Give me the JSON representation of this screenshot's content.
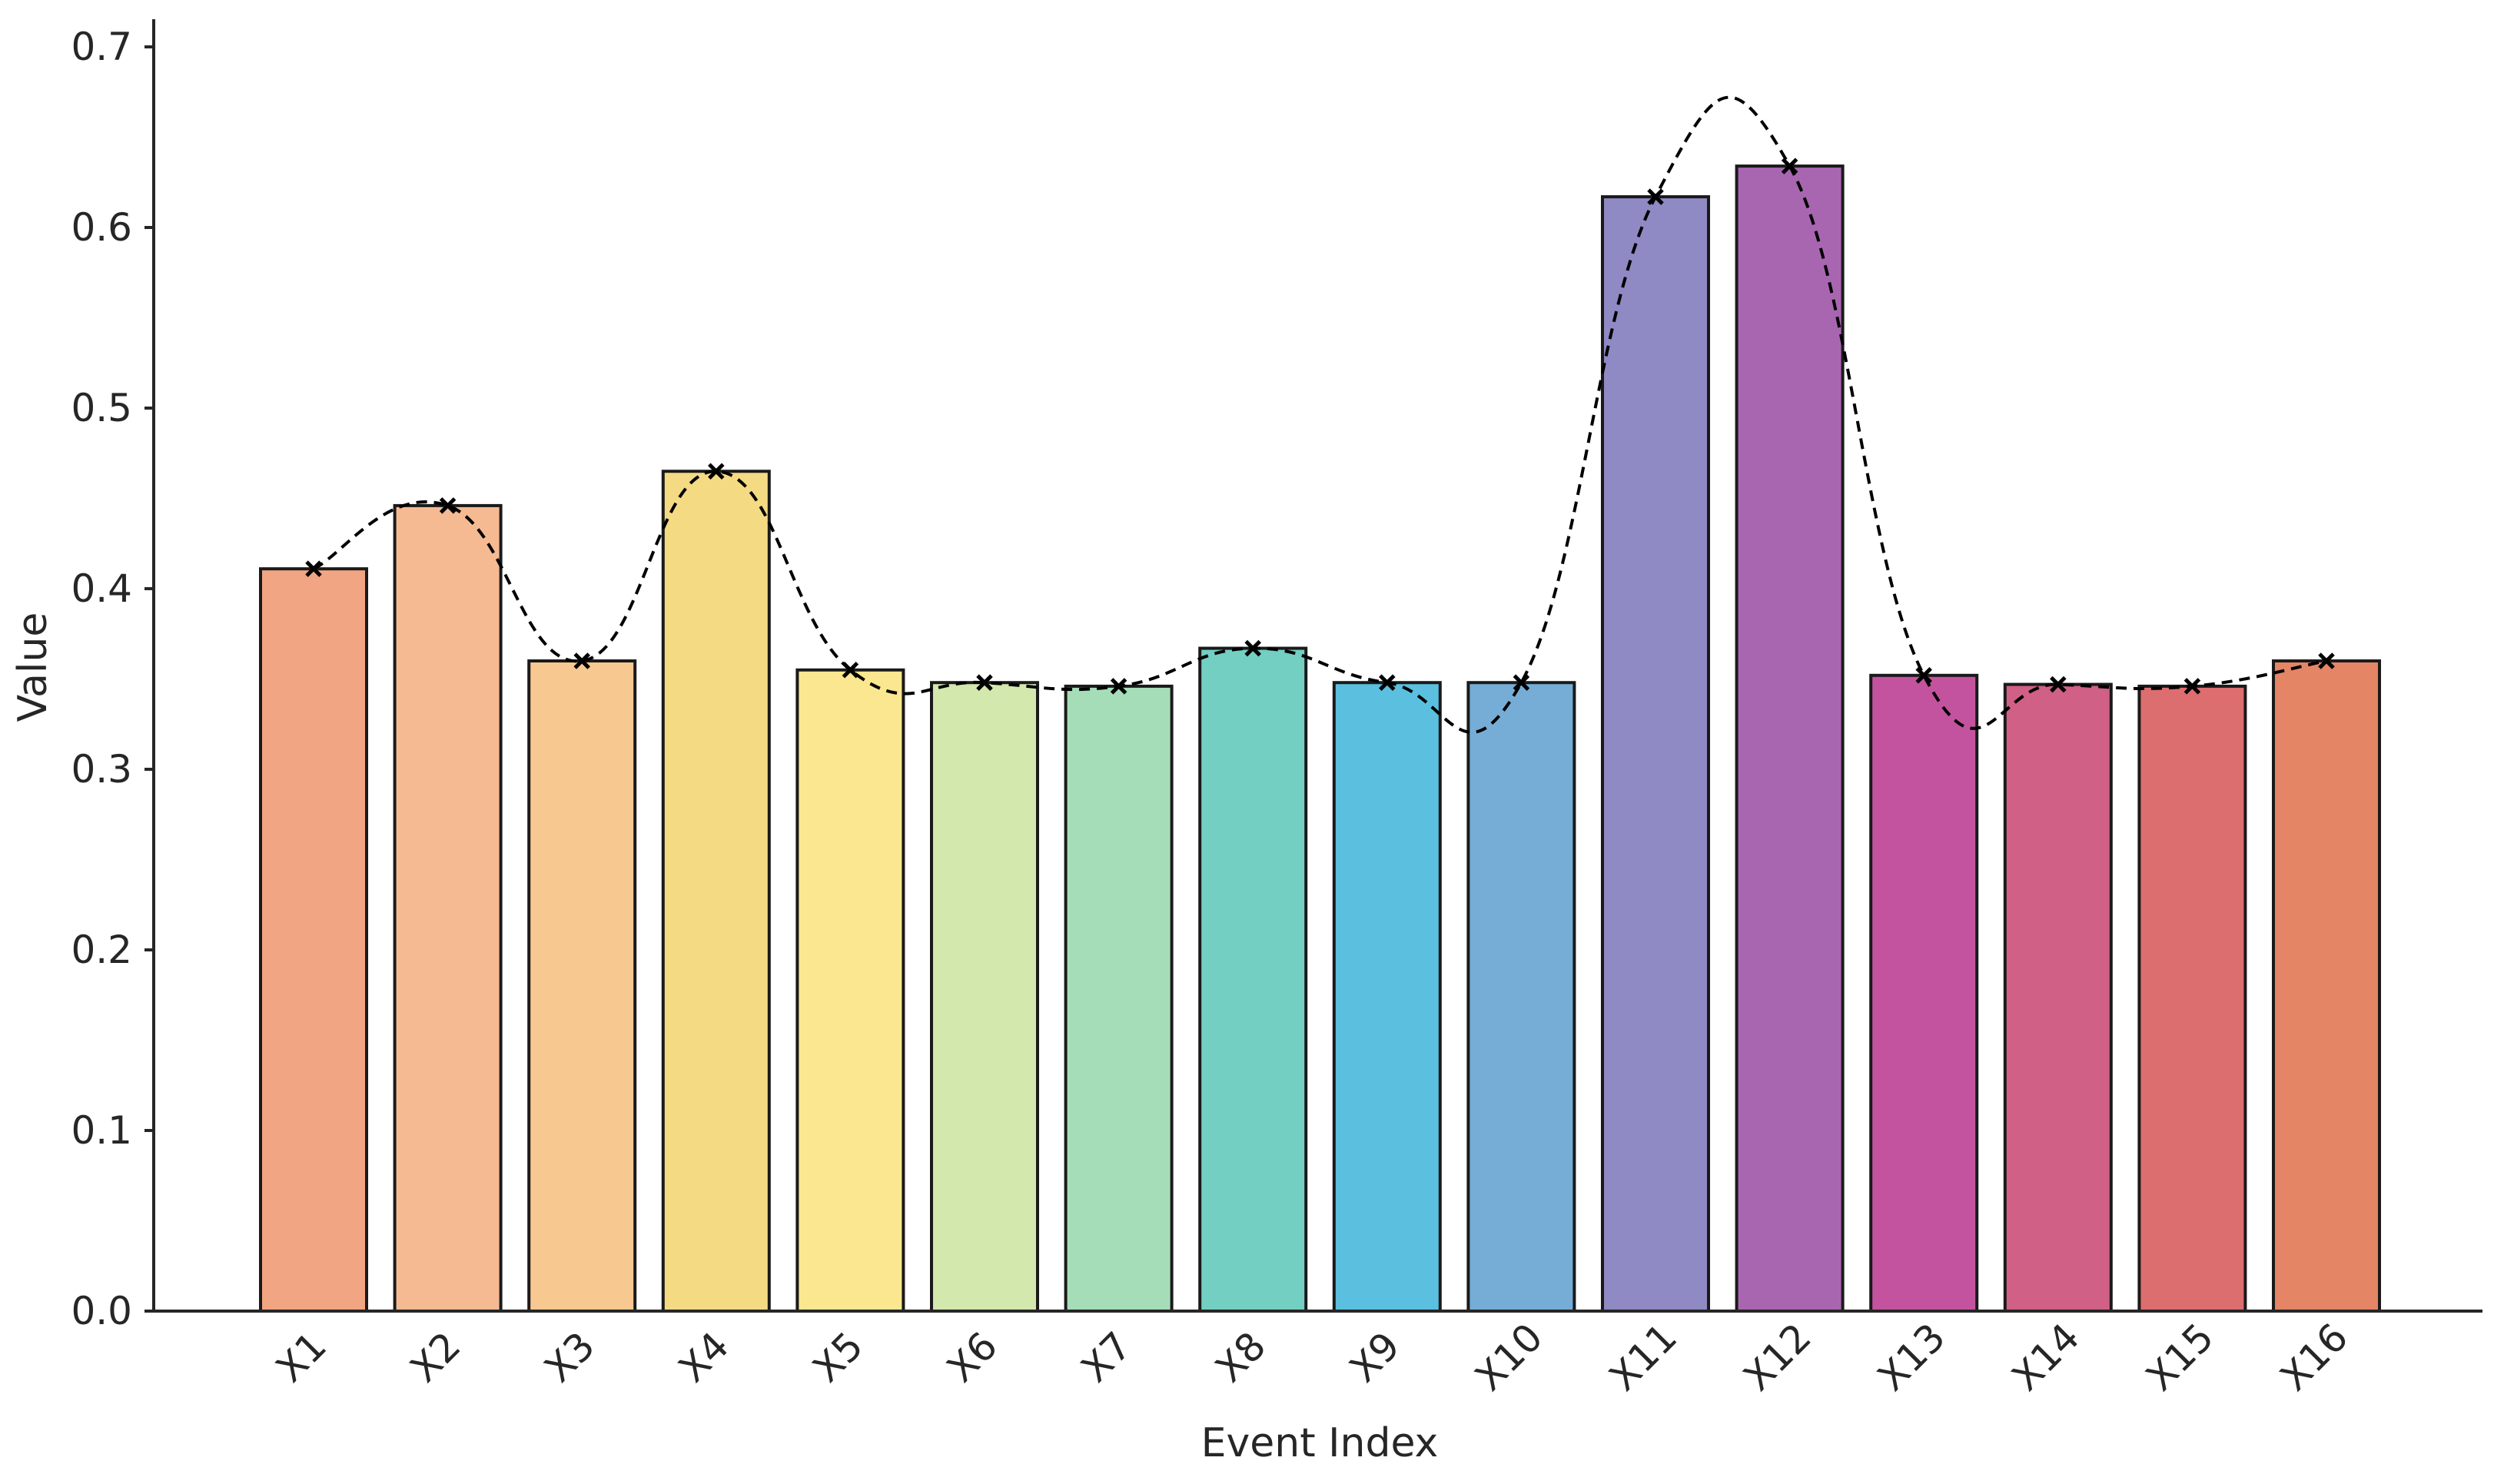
{
  "chart_data": {
    "type": "bar",
    "xlabel": "Event Index",
    "ylabel": "Value",
    "ylim": [
      0,
      0.72
    ],
    "yticks": [
      "0.0",
      "0.1",
      "0.2",
      "0.3",
      "0.4",
      "0.5",
      "0.6",
      "0.7"
    ],
    "categories": [
      "X1",
      "X2",
      "X3",
      "X4",
      "X5",
      "X6",
      "X7",
      "X8",
      "X9",
      "X10",
      "X11",
      "X12",
      "X13",
      "X14",
      "X15",
      "X16"
    ],
    "values": [
      0.411,
      0.446,
      0.36,
      0.465,
      0.355,
      0.348,
      0.346,
      0.367,
      0.348,
      0.348,
      0.617,
      0.634,
      0.352,
      0.347,
      0.346,
      0.36
    ],
    "colors": [
      "#F2A582",
      "#F5BA92",
      "#F7C890",
      "#F5DA84",
      "#FBE78F",
      "#D3E8AD",
      "#A5DDB8",
      "#73CFC2",
      "#5BBFDF",
      "#76ADD6",
      "#8F89C4",
      "#A866B0",
      "#C4539F",
      "#D06085",
      "#DC6E70",
      "#E48566"
    ],
    "overlay": {
      "type": "line",
      "style": "dashed smoothed",
      "marker": "x",
      "color": "#000000"
    },
    "grid": false
  }
}
